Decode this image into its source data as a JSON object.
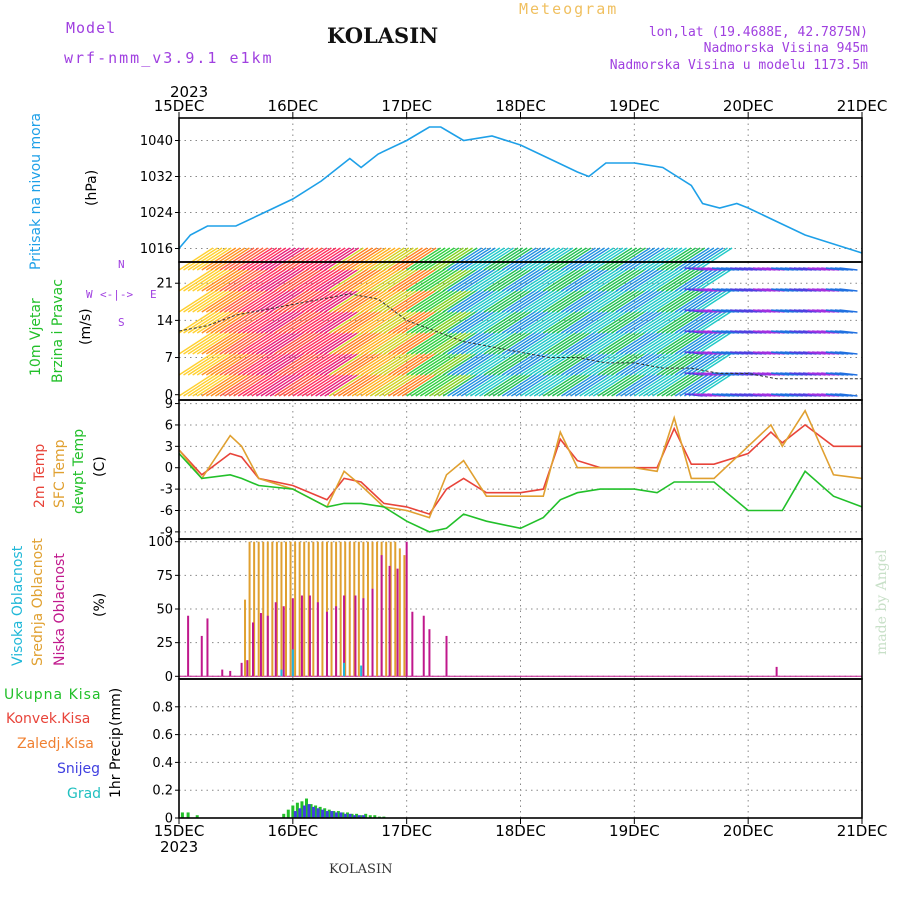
{
  "header": {
    "model_label": "Model",
    "model_name": "wrf-nmm_v3.9.1 e1km",
    "station": "KOLASIN",
    "product": "Meteogram",
    "lonlat": "lon,lat (19.4688E, 42.7875N)",
    "elevation": "Nadmorska Visina 945m",
    "model_elevation": "Nadmorska Visina u modelu 1173.5m",
    "year_top": "2023",
    "year_bottom": "2023",
    "footer": "KOLASIN",
    "credit": "made by Angel"
  },
  "colors": {
    "pressure": "#1ea0e8",
    "temp2m": "#e8443a",
    "sfc": "#e0a030",
    "dewpt": "#22c02a",
    "high_cloud": "#20b8d8",
    "mid_cloud": "#e0a030",
    "low_cloud": "#c0188c",
    "precip_total": "#22c02a",
    "precip_conv": "#e8443a",
    "freezing": "#f08030",
    "snow": "#4040e0",
    "hail": "#20c0c0",
    "wind_title": "#22c02a",
    "compass": "#a040e0",
    "credit": "#c8e0c8"
  },
  "labels": {
    "pressure": [
      "Pritisak na nivou mora",
      "(hPa)"
    ],
    "wind": [
      "10m Vjetar",
      "Brzina i Pravac",
      "(m/s)"
    ],
    "compass": {
      "n": "N",
      "s": "S",
      "e": "E",
      "w": "W",
      "arrow": "<-|->"
    },
    "temp": [
      "2m Temp",
      "SFC Temp",
      "dewpt Temp",
      "(C)"
    ],
    "cloud": [
      "Visoka Oblacnost",
      "Srednja Oblacnost",
      "Niska Oblacnost",
      "(%)"
    ],
    "precip_legend": [
      "Ukupna Kisa",
      "Konvek.Kisa",
      "Zaledj.Kisa",
      "Snijeg",
      "Grad"
    ],
    "precip_axis": [
      "1hr Precip",
      "(mm)"
    ]
  },
  "chart_data": [
    {
      "type": "line",
      "panel": "pressure",
      "xlabel_ticks": [
        "15DEC",
        "16DEC",
        "17DEC",
        "18DEC",
        "19DEC",
        "20DEC",
        "21DEC"
      ],
      "ylabel": "(hPa)",
      "ylim": [
        1013,
        1045
      ],
      "yticks": [
        1016,
        1024,
        1032,
        1040
      ],
      "grid": true,
      "series": [
        {
          "name": "Pritisak na nivou mora",
          "x_days": [
            0,
            0.1,
            0.25,
            0.5,
            0.75,
            1.0,
            1.25,
            1.5,
            1.6,
            1.75,
            2.0,
            2.2,
            2.3,
            2.5,
            2.75,
            3.0,
            3.25,
            3.5,
            3.6,
            3.75,
            4.0,
            4.25,
            4.5,
            4.6,
            4.75,
            4.9,
            5.0,
            5.25,
            5.5,
            5.75,
            6.0
          ],
          "values": [
            1016,
            1019,
            1021,
            1021,
            1024,
            1027,
            1031,
            1036,
            1034,
            1037,
            1040,
            1043,
            1043,
            1040,
            1041,
            1039,
            1036,
            1033,
            1032,
            1035,
            1035,
            1034,
            1030,
            1026,
            1025,
            1026,
            1025,
            1022,
            1019,
            1017,
            1015
          ]
        }
      ]
    },
    {
      "type": "vector",
      "panel": "wind",
      "ylabel": "(m/s)",
      "ylim": [
        -1,
        25
      ],
      "yticks": [
        0,
        7,
        14,
        21
      ],
      "grid": true,
      "series": [
        {
          "name": "10m Vjetar",
          "x_days": [
            0,
            0.25,
            0.5,
            0.75,
            1.0,
            1.25,
            1.5,
            1.75,
            2.0,
            2.25,
            2.5,
            2.75,
            3.0,
            3.25,
            3.5,
            3.75,
            4.0,
            4.25,
            4.5,
            4.75,
            5.0,
            5.25,
            5.5,
            5.75,
            6.0
          ],
          "values": [
            12,
            13,
            15,
            16,
            17,
            18,
            19,
            18,
            14,
            12,
            10,
            9,
            8,
            7,
            7,
            6,
            6,
            5,
            5,
            4,
            4,
            3,
            3,
            3,
            3
          ]
        }
      ]
    },
    {
      "type": "line",
      "panel": "temperature",
      "ylabel": "(C)",
      "ylim": [
        -10,
        9.5
      ],
      "yticks": [
        -9,
        -6,
        -3,
        0,
        3,
        6,
        9
      ],
      "grid": true,
      "series": [
        {
          "name": "2m Temp",
          "x_days": [
            0,
            0.2,
            0.45,
            0.55,
            0.7,
            1.0,
            1.3,
            1.45,
            1.6,
            1.8,
            2.0,
            2.2,
            2.35,
            2.5,
            2.7,
            3.0,
            3.2,
            3.35,
            3.5,
            3.7,
            4.0,
            4.2,
            4.35,
            4.5,
            4.7,
            5.0,
            5.2,
            5.3,
            5.5,
            5.75,
            6.0
          ],
          "values": [
            2.5,
            -1,
            2,
            1.5,
            -1.5,
            -2.5,
            -4.5,
            -1.5,
            -2,
            -5,
            -5.5,
            -6.5,
            -3,
            -1.5,
            -3.5,
            -3.5,
            -3,
            4,
            1,
            0,
            0,
            0,
            5.5,
            0.5,
            0.5,
            2,
            5,
            3.5,
            6,
            3,
            3
          ]
        },
        {
          "name": "SFC Temp",
          "x_days": [
            0,
            0.2,
            0.45,
            0.55,
            0.7,
            1.0,
            1.3,
            1.45,
            1.6,
            1.8,
            2.0,
            2.2,
            2.35,
            2.5,
            2.7,
            3.0,
            3.2,
            3.35,
            3.5,
            3.7,
            4.0,
            4.2,
            4.35,
            4.5,
            4.7,
            5.0,
            5.2,
            5.3,
            5.5,
            5.75,
            6.0
          ],
          "values": [
            2.5,
            -1.5,
            4.5,
            3,
            -1.5,
            -3,
            -5.5,
            -0.5,
            -2.5,
            -5.5,
            -6,
            -7,
            -1,
            1,
            -4,
            -4,
            -4,
            5,
            0,
            0,
            0,
            -0.5,
            7,
            -1.5,
            -1.5,
            3,
            6,
            3,
            8,
            -1,
            -1.5
          ]
        },
        {
          "name": "dewpt Temp",
          "x_days": [
            0,
            0.2,
            0.45,
            0.55,
            0.7,
            1.0,
            1.3,
            1.45,
            1.6,
            1.8,
            2.0,
            2.2,
            2.35,
            2.5,
            2.7,
            3.0,
            3.2,
            3.35,
            3.5,
            3.7,
            4.0,
            4.2,
            4.35,
            4.5,
            4.7,
            5.0,
            5.2,
            5.3,
            5.5,
            5.75,
            6.0
          ],
          "values": [
            2,
            -1.5,
            -1,
            -1.5,
            -2.5,
            -3,
            -5.5,
            -5,
            -5,
            -5.5,
            -7.5,
            -9,
            -8.5,
            -6.5,
            -7.5,
            -8.5,
            -7,
            -4.5,
            -3.5,
            -3,
            -3,
            -3.5,
            -2,
            -2,
            -2,
            -6,
            -6,
            -6,
            -0.5,
            -4,
            -5.5
          ]
        }
      ]
    },
    {
      "type": "bar",
      "panel": "cloud",
      "ylabel": "(%)",
      "ylim": [
        -2,
        102
      ],
      "yticks": [
        0,
        25,
        50,
        75,
        100
      ],
      "grid": true,
      "series": [
        {
          "name": "Srednja Oblacnost",
          "x_days": [
            0.58,
            0.62,
            0.66,
            0.7,
            0.74,
            0.78,
            0.82,
            0.86,
            0.9,
            0.94,
            0.98,
            1.02,
            1.06,
            1.1,
            1.14,
            1.18,
            1.22,
            1.26,
            1.3,
            1.34,
            1.38,
            1.42,
            1.46,
            1.5,
            1.54,
            1.58,
            1.62,
            1.66,
            1.7,
            1.74,
            1.78,
            1.82,
            1.86,
            1.9,
            1.94,
            1.98
          ],
          "values": [
            57,
            100,
            100,
            100,
            100,
            100,
            100,
            100,
            100,
            100,
            100,
            100,
            100,
            100,
            100,
            100,
            100,
            100,
            100,
            100,
            100,
            100,
            100,
            100,
            100,
            100,
            100,
            100,
            100,
            100,
            100,
            100,
            100,
            100,
            95,
            90
          ]
        },
        {
          "name": "Niska Oblacnost",
          "x_days": [
            0.08,
            0.2,
            0.25,
            0.38,
            0.45,
            0.55,
            0.6,
            0.65,
            0.72,
            0.78,
            0.85,
            0.92,
            1.0,
            1.08,
            1.15,
            1.22,
            1.3,
            1.38,
            1.45,
            1.55,
            1.62,
            1.7,
            1.78,
            1.85,
            1.92,
            2.0,
            2.05,
            2.15,
            2.2,
            2.35,
            5.25
          ],
          "values": [
            45,
            30,
            43,
            5,
            4,
            10,
            12,
            40,
            47,
            45,
            55,
            52,
            58,
            60,
            60,
            55,
            48,
            52,
            60,
            60,
            58,
            65,
            90,
            82,
            80,
            100,
            48,
            45,
            35,
            30,
            7
          ]
        },
        {
          "name": "Visoka Oblacnost",
          "x_days": [
            0.9,
            1.0,
            1.45,
            1.6
          ],
          "values": [
            5,
            20,
            10,
            8
          ]
        }
      ]
    },
    {
      "type": "bar",
      "panel": "precip",
      "ylabel": "1hr Precip (mm)",
      "ylim": [
        0,
        1.0
      ],
      "yticks": [
        0,
        0.2,
        0.4,
        0.6,
        0.8
      ],
      "grid": true,
      "series": [
        {
          "name": "Ukupna Kisa",
          "x_days": [
            0.03,
            0.08,
            0.16,
            0.92,
            0.96,
            1.0,
            1.04,
            1.08,
            1.12,
            1.16,
            1.2,
            1.24,
            1.28,
            1.32,
            1.36,
            1.4,
            1.44,
            1.48,
            1.52,
            1.56,
            1.6,
            1.64,
            1.68,
            1.72,
            1.76,
            1.8
          ],
          "values": [
            0.04,
            0.04,
            0.02,
            0.03,
            0.06,
            0.09,
            0.11,
            0.12,
            0.14,
            0.1,
            0.09,
            0.08,
            0.07,
            0.06,
            0.05,
            0.05,
            0.04,
            0.04,
            0.03,
            0.03,
            0.02,
            0.03,
            0.02,
            0.02,
            0.01,
            0.01
          ]
        },
        {
          "name": "Snijeg",
          "x_days": [
            1.0,
            1.04,
            1.08,
            1.12,
            1.16,
            1.2,
            1.24,
            1.28,
            1.32,
            1.36,
            1.4,
            1.44,
            1.48,
            1.52,
            1.56,
            1.6
          ],
          "values": [
            0.05,
            0.07,
            0.09,
            0.1,
            0.08,
            0.07,
            0.06,
            0.05,
            0.05,
            0.04,
            0.04,
            0.03,
            0.03,
            0.02,
            0.02,
            0.02
          ]
        }
      ]
    }
  ]
}
